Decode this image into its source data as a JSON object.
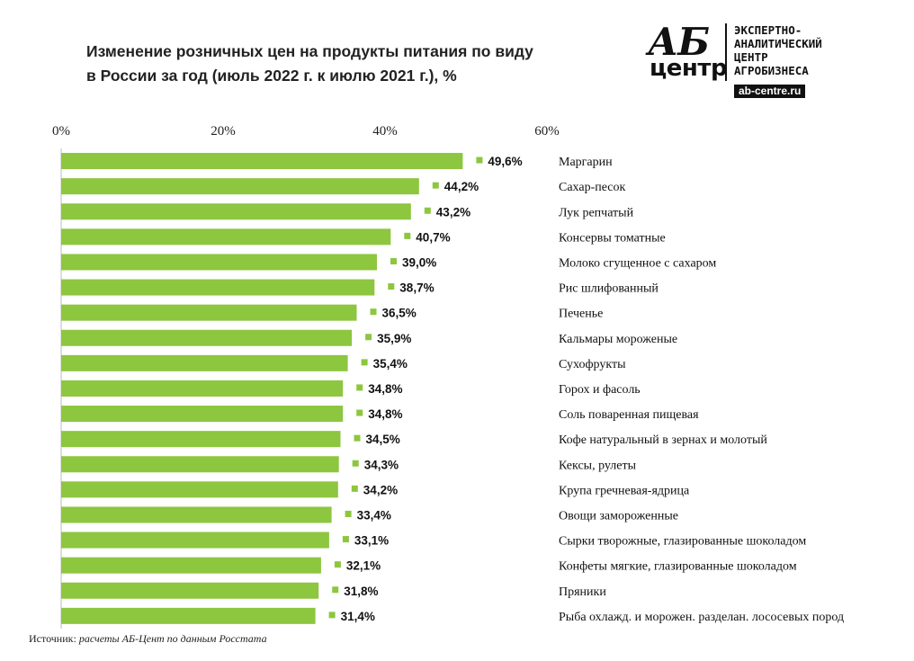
{
  "title_lines": [
    "Изменение розничных цен на продукты питания по виду",
    "в России за год (июль 2022 г. к июлю 2021 г.), %"
  ],
  "logo": {
    "mark": "АБ",
    "sub": "центр",
    "lines": [
      "ЭКСПЕРТНО-",
      "АНАЛИТИЧЕСКИЙ",
      "ЦЕНТР",
      "АГРОБИЗНЕСА"
    ],
    "site": "ab-centre.ru"
  },
  "source": {
    "label": "Источник:",
    "text": "расчеты АБ-Цент  по данным Росстата"
  },
  "colors": {
    "bar": "#8dc63f",
    "marker": "#8dc63f",
    "text": "#111111"
  },
  "chart_data": {
    "type": "bar",
    "orientation": "horizontal",
    "xlim": [
      0,
      60
    ],
    "ticks": [
      0,
      20,
      40,
      60
    ],
    "tick_labels": [
      "0%",
      "20%",
      "40%",
      "60%"
    ],
    "grid": false,
    "categories": [
      "Маргарин",
      "Сахар-песок",
      "Лук репчатый",
      "Консервы томатные",
      "Молоко сгущенное с сахаром",
      "Рис шлифованный",
      "Печенье",
      "Кальмары мороженые",
      "Сухофрукты",
      "Горох и фасоль",
      "Соль поваренная пищевая",
      "Кофе натуральный в зернах и молотый",
      "Кексы, рулеты",
      "Крупа гречневая-ядрица",
      "Овощи замороженные",
      "Сырки творожные, глазированные шоколадом",
      "Конфеты мягкие, глазированные шоколадом",
      "Пряники",
      "Рыба охлажд. и морожен. разделан. лососевых пород"
    ],
    "values": [
      49.6,
      44.2,
      43.2,
      40.7,
      39.0,
      38.7,
      36.5,
      35.9,
      35.4,
      34.8,
      34.8,
      34.5,
      34.3,
      34.2,
      33.4,
      33.1,
      32.1,
      31.8,
      31.4
    ],
    "value_labels": [
      "49,6%",
      "44,2%",
      "43,2%",
      "40,7%",
      "39,0%",
      "38,7%",
      "36,5%",
      "35,9%",
      "35,4%",
      "34,8%",
      "34,8%",
      "34,5%",
      "34,3%",
      "34,2%",
      "33,4%",
      "33,1%",
      "32,1%",
      "31,8%",
      "31,4%"
    ]
  }
}
